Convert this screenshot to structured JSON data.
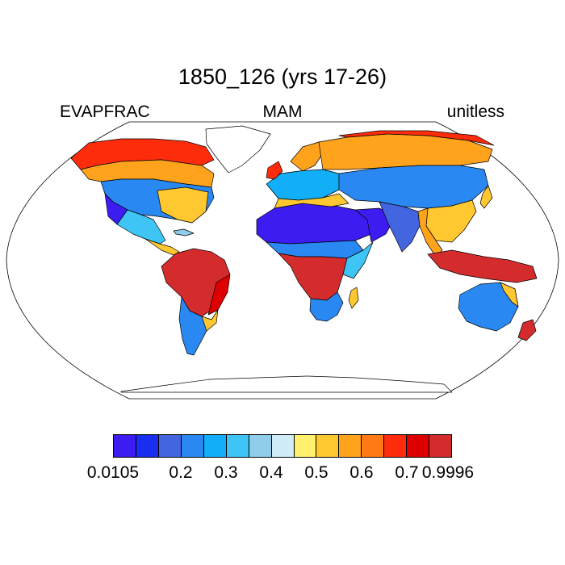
{
  "title": "1850_126 (yrs 17-26)",
  "subtitle_left": "EVAPFRAC",
  "subtitle_center": "MAM",
  "subtitle_right": "unitless",
  "map": {
    "projection": "Robinson",
    "variable": "EVAPFRAC",
    "season": "MAM"
  },
  "colorbar": {
    "colors": [
      "#3c1cf0",
      "#1a2ef0",
      "#4465e0",
      "#2a88f2",
      "#12aef7",
      "#3ec5f5",
      "#90cdea",
      "#cfecf8",
      "#fff06e",
      "#ffc830",
      "#ffa21c",
      "#ff7a14",
      "#ff2c0c",
      "#de0000",
      "#d42c2c"
    ],
    "labels": [
      "0.0105",
      "0.2",
      "0.3",
      "0.4",
      "0.5",
      "0.6",
      "0.7",
      "0.9996"
    ]
  }
}
